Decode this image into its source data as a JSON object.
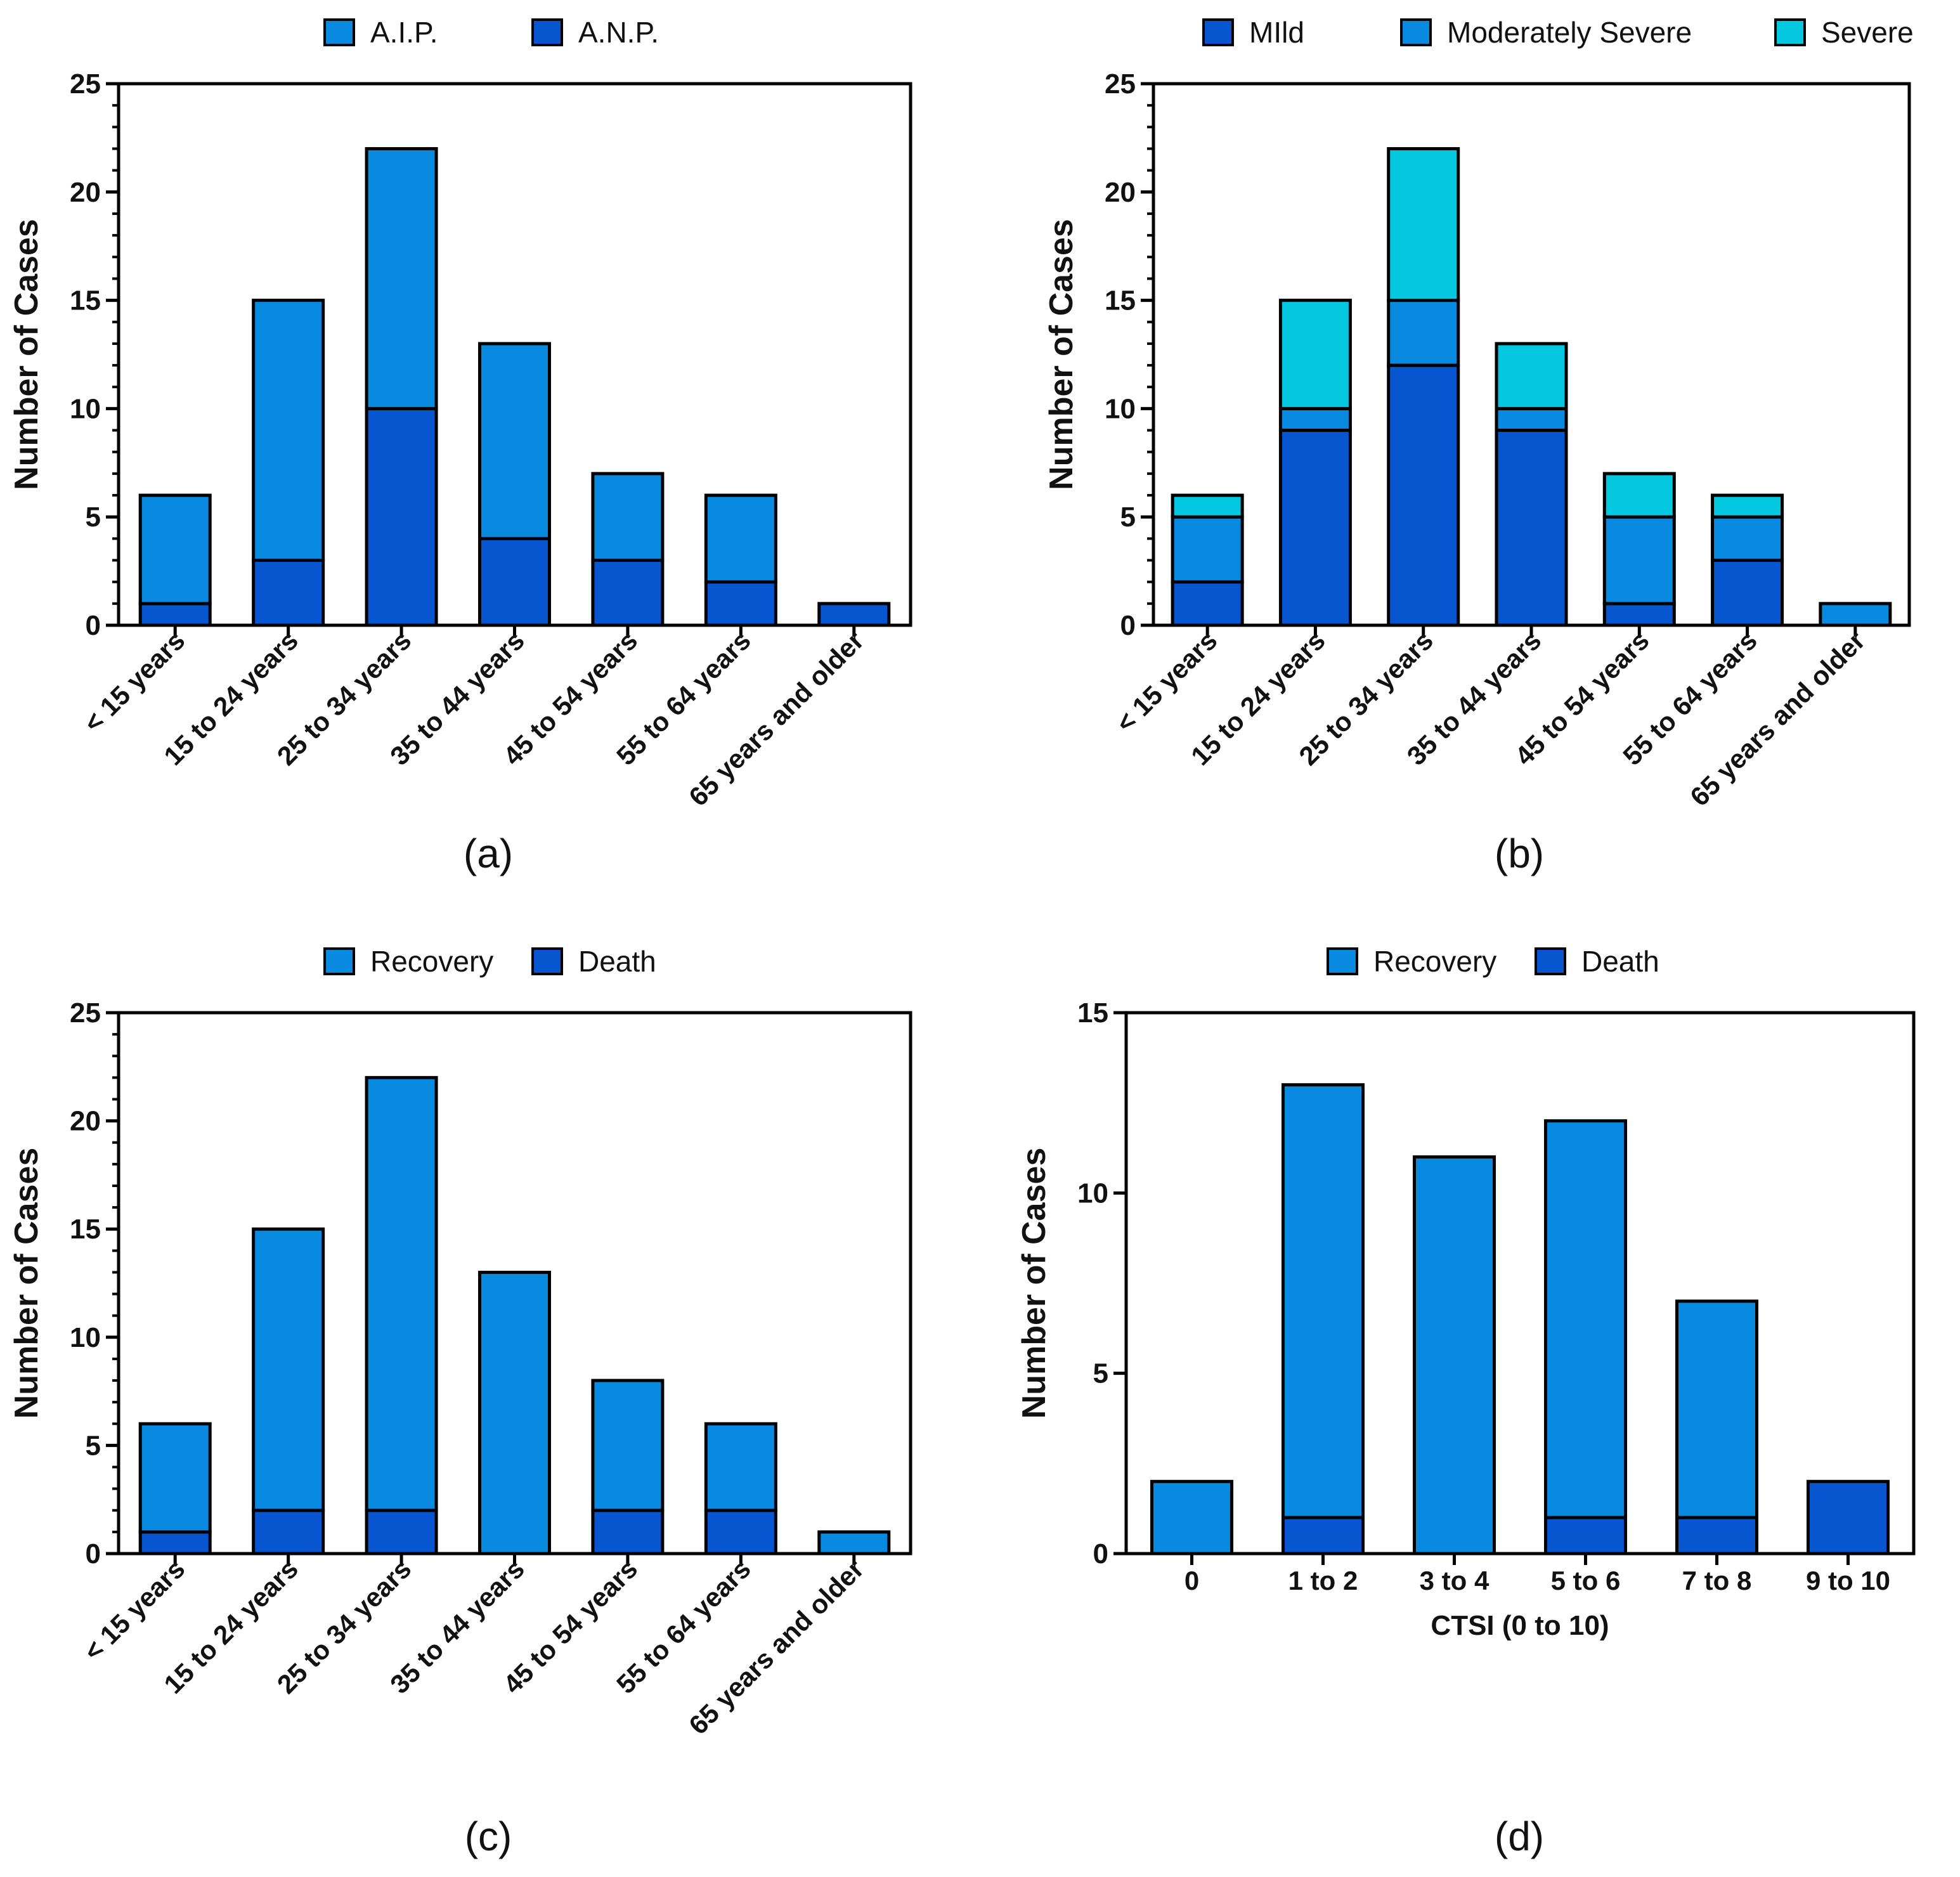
{
  "colors": {
    "dark_blue": "#0756d0",
    "mid_blue": "#088ae0",
    "cyan": "#03c8e0",
    "outline": "#000000"
  },
  "chart_data": [
    {
      "type": "bar",
      "stacked": true,
      "panel_label": "(a)",
      "title": "",
      "xlabel": "",
      "ylabel": "Number of Cases",
      "ylim": [
        0,
        25
      ],
      "yticks": [
        0,
        5,
        10,
        15,
        20,
        25
      ],
      "ytick_labels": [
        "0",
        "5",
        "10",
        "15",
        "20",
        "25"
      ],
      "minor_ticks_per_major": 5,
      "x_label_rotation": -45,
      "categories": [
        "< 15 years",
        "15 to 24 years",
        "25 to 34 years",
        "35 to 44 years",
        "45 to 54 years",
        "55 to 64 years",
        "65 years and older"
      ],
      "series": [
        {
          "name": "A.N.P.",
          "color": "#0756d0",
          "values": [
            1,
            3,
            10,
            4,
            3,
            2,
            1
          ]
        },
        {
          "name": "A.I.P.",
          "color": "#088ae0",
          "values": [
            5,
            12,
            12,
            9,
            4,
            4,
            0
          ]
        }
      ],
      "legend": [
        {
          "name": "A.I.P.",
          "color": "#088ae0"
        },
        {
          "name": "A.N.P.",
          "color": "#0756d0"
        }
      ]
    },
    {
      "type": "bar",
      "stacked": true,
      "panel_label": "(b)",
      "title": "",
      "xlabel": "",
      "ylabel": "Number of Cases",
      "ylim": [
        0,
        25
      ],
      "yticks": [
        0,
        5,
        10,
        15,
        20,
        25
      ],
      "ytick_labels": [
        "0",
        "5",
        "10",
        "15",
        "20",
        "25"
      ],
      "minor_ticks_per_major": 5,
      "x_label_rotation": -45,
      "categories": [
        "< 15 years",
        "15 to 24 years",
        "25 to 34 years",
        "35 to 44 years",
        "45 to 54 years",
        "55 to 64 years",
        "65 years and older"
      ],
      "series": [
        {
          "name": "MIld",
          "color": "#0756d0",
          "values": [
            2,
            9,
            12,
            9,
            1,
            3,
            0
          ]
        },
        {
          "name": "Moderately Severe",
          "color": "#088ae0",
          "values": [
            3,
            1,
            3,
            1,
            4,
            2,
            1
          ]
        },
        {
          "name": "Severe",
          "color": "#03c8e0",
          "values": [
            1,
            5,
            7,
            3,
            2,
            1,
            0
          ]
        }
      ],
      "legend": [
        {
          "name": "MIld",
          "color": "#0756d0"
        },
        {
          "name": "Moderately Severe",
          "color": "#088ae0"
        },
        {
          "name": "Severe",
          "color": "#03c8e0"
        }
      ]
    },
    {
      "type": "bar",
      "stacked": true,
      "panel_label": "(c)",
      "title": "",
      "xlabel": "",
      "ylabel": "Number of Cases",
      "ylim": [
        0,
        25
      ],
      "yticks": [
        0,
        5,
        10,
        15,
        20,
        25
      ],
      "ytick_labels": [
        "0",
        "5",
        "10",
        "15",
        "20",
        "25"
      ],
      "minor_ticks_per_major": 5,
      "x_label_rotation": -45,
      "categories": [
        "< 15 years",
        "15 to 24 years",
        "25 to 34 years",
        "35 to 44 years",
        "45 to 54 years",
        "55 to 64 years",
        "65 years and older"
      ],
      "series": [
        {
          "name": "Death",
          "color": "#0756d0",
          "values": [
            1,
            2,
            2,
            0,
            2,
            2,
            0
          ]
        },
        {
          "name": "Recovery",
          "color": "#088ae0",
          "values": [
            5,
            13,
            20,
            13,
            6,
            4,
            1
          ]
        }
      ],
      "legend": [
        {
          "name": "Recovery",
          "color": "#088ae0"
        },
        {
          "name": "Death",
          "color": "#0756d0"
        }
      ]
    },
    {
      "type": "bar",
      "stacked": true,
      "panel_label": "(d)",
      "title": "",
      "xlabel": "CTSI (0 to 10)",
      "ylabel": "Number of Cases",
      "ylim": [
        0,
        15
      ],
      "yticks": [
        0,
        5,
        10,
        15
      ],
      "ytick_labels": [
        "0",
        "5",
        "10",
        "15"
      ],
      "minor_ticks_per_major": 1,
      "x_label_rotation": 0,
      "categories": [
        "0",
        "1 to 2",
        "3 to 4",
        "5 to 6",
        "7 to 8",
        "9 to 10"
      ],
      "series": [
        {
          "name": "Death",
          "color": "#0756d0",
          "values": [
            0,
            1,
            0,
            1,
            1,
            2
          ]
        },
        {
          "name": "Recovery",
          "color": "#088ae0",
          "values": [
            2,
            12,
            11,
            11,
            6,
            0
          ]
        }
      ],
      "legend": [
        {
          "name": "Recovery",
          "color": "#088ae0"
        },
        {
          "name": "Death",
          "color": "#0756d0"
        }
      ]
    }
  ]
}
